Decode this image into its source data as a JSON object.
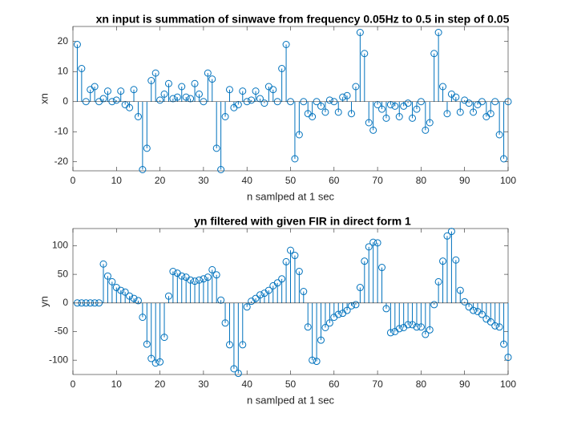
{
  "chart_data": [
    {
      "type": "stem",
      "title": "xn input is summation of sinwave from frequency 0.05Hz to 0.5 in step of 0.05",
      "xlabel": "n samlped at 1 sec",
      "ylabel": "xn",
      "color": "#0072bd",
      "x": [
        1,
        2,
        3,
        4,
        5,
        6,
        7,
        8,
        9,
        10,
        11,
        12,
        13,
        14,
        15,
        16,
        17,
        18,
        19,
        20,
        21,
        22,
        23,
        24,
        25,
        26,
        27,
        28,
        29,
        30,
        31,
        32,
        33,
        34,
        35,
        36,
        37,
        38,
        39,
        40,
        41,
        42,
        43,
        44,
        45,
        46,
        47,
        48,
        49,
        50,
        51,
        52,
        53,
        54,
        55,
        56,
        57,
        58,
        59,
        60,
        61,
        62,
        63,
        64,
        65,
        66,
        67,
        68,
        69,
        70,
        71,
        72,
        73,
        74,
        75,
        76,
        77,
        78,
        79,
        80,
        81,
        82,
        83,
        84,
        85,
        86,
        87,
        88,
        89,
        90,
        91,
        92,
        93,
        94,
        95,
        96,
        97,
        98,
        99,
        100
      ],
      "values": [
        19,
        11,
        0,
        4,
        5,
        0,
        1,
        3.5,
        0,
        0.5,
        3.5,
        -1,
        -2,
        4,
        -5,
        -22.6,
        -15.5,
        7,
        9.5,
        0.5,
        2.5,
        6,
        1,
        1.5,
        5,
        1.5,
        1,
        6,
        2.5,
        0,
        9.5,
        7.5,
        -15.5,
        -22.6,
        -5,
        4,
        -2,
        -1,
        3.5,
        0,
        0.5,
        3.5,
        1,
        -0.5,
        5,
        4,
        0,
        11,
        19,
        0,
        -19,
        -11,
        0,
        -4,
        -5,
        0,
        -1.5,
        -3.5,
        0.5,
        0,
        -3.5,
        1.5,
        2,
        -4,
        5,
        23,
        16,
        -7,
        -9.5,
        -1,
        -2.5,
        -5.5,
        -1,
        -1.5,
        -5,
        -1.5,
        -0.5,
        -5.5,
        -2.5,
        0,
        -9.5,
        -7,
        16,
        23,
        5,
        -4,
        2.5,
        1.5,
        -3.5,
        0.5,
        -0.5,
        -3.5,
        -1,
        0,
        -5,
        -4,
        0,
        -11,
        -19,
        0
      ],
      "xlim": [
        0,
        100
      ],
      "xticks": [
        0,
        10,
        20,
        30,
        40,
        50,
        60,
        70,
        80,
        90,
        100
      ],
      "ylim": [
        -23,
        25
      ],
      "yticks": [
        -20,
        -10,
        0,
        10,
        20
      ]
    },
    {
      "type": "stem",
      "title": "yn filtered with given FIR in direct form 1",
      "xlabel": "n samlped at 1 sec",
      "ylabel": "yn",
      "color": "#0072bd",
      "x": [
        1,
        2,
        3,
        4,
        5,
        6,
        7,
        8,
        9,
        10,
        11,
        12,
        13,
        14,
        15,
        16,
        17,
        18,
        19,
        20,
        21,
        22,
        23,
        24,
        25,
        26,
        27,
        28,
        29,
        30,
        31,
        32,
        33,
        34,
        35,
        36,
        37,
        38,
        39,
        40,
        41,
        42,
        43,
        44,
        45,
        46,
        47,
        48,
        49,
        50,
        51,
        52,
        53,
        54,
        55,
        56,
        57,
        58,
        59,
        60,
        61,
        62,
        63,
        64,
        65,
        66,
        67,
        68,
        69,
        70,
        71,
        72,
        73,
        74,
        75,
        76,
        77,
        78,
        79,
        80,
        81,
        82,
        83,
        84,
        85,
        86,
        87,
        88,
        89,
        90,
        91,
        92,
        93,
        94,
        95,
        96,
        97,
        98,
        99,
        100
      ],
      "values": [
        0,
        0,
        0,
        0,
        0,
        0,
        68,
        47,
        37,
        27,
        22,
        19,
        12,
        8,
        4,
        -25,
        -72,
        -97,
        -105,
        -103,
        -60,
        12,
        55,
        52,
        47,
        45,
        40,
        38,
        40,
        42,
        45,
        58,
        49,
        5,
        -35,
        -73,
        -115,
        -123,
        -73,
        -7,
        3,
        8,
        14,
        17,
        22,
        30,
        35,
        42,
        72,
        92,
        83,
        55,
        20,
        -42,
        -100,
        -102,
        -65,
        -43,
        -35,
        -25,
        -20,
        -18,
        -13,
        -5,
        -3,
        27,
        73,
        98,
        106,
        105,
        62,
        -10,
        -52,
        -50,
        -45,
        -43,
        -38,
        -38,
        -42,
        -42,
        -55,
        -47,
        -3,
        37,
        73,
        117,
        125,
        75,
        22,
        2,
        -7,
        -13,
        -15,
        -20,
        -28,
        -33,
        -40,
        -42,
        -72,
        -95
      ],
      "xlim": [
        0,
        100
      ],
      "xticks": [
        0,
        10,
        20,
        30,
        40,
        50,
        60,
        70,
        80,
        90,
        100
      ],
      "ylim": [
        -125,
        130
      ],
      "yticks": [
        -100,
        -50,
        0,
        50,
        100
      ]
    }
  ]
}
